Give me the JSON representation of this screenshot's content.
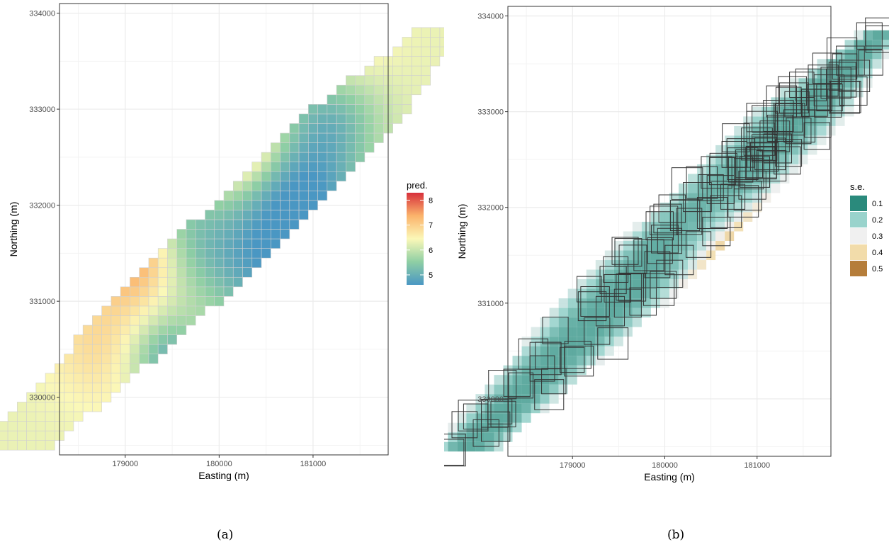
{
  "colors": {
    "pred_scale": [
      "#4a97c3",
      "#8fcfa4",
      "#fbf8b8",
      "#fbb36b",
      "#d7303b"
    ],
    "se_scale": [
      "#2a8a7c",
      "#99d3cc",
      "#f0f0f0",
      "#f2dcaa",
      "#b57d3a"
    ],
    "grid": "#ebebeb",
    "tile_border": "#d0d0d0",
    "panel_border": "#333333"
  },
  "chart_data": [
    {
      "type": "heatmap",
      "panel_caption": "(a)",
      "xlabel": "Easting (m)",
      "ylabel": "Northing (m)",
      "xlim": [
        178300,
        181800
      ],
      "ylim": [
        329400,
        334100
      ],
      "x_ticks": [
        179000,
        180000,
        181000
      ],
      "y_ticks": [
        330000,
        331000,
        332000,
        333000,
        334000
      ],
      "x_tick_labels": [
        "179000",
        "180000",
        "181000"
      ],
      "y_tick_labels": [
        "330000",
        "331000",
        "332000",
        "333000",
        "334000"
      ],
      "grid": true,
      "cell_size_m": 100,
      "legend": {
        "title": "pred.",
        "position": "right",
        "type": "colorbar",
        "range": [
          4.6,
          8.3
        ],
        "labels": [
          "5",
          "6",
          "7",
          "8"
        ],
        "values": [
          5,
          6,
          7,
          8
        ]
      },
      "field": {
        "centerline": {
          "x0": 178500,
          "y0": 330100,
          "slope": 1.03
        },
        "half_width_m": [
          {
            "y": 329500,
            "w": 360
          },
          {
            "y": 331000,
            "w": 580
          },
          {
            "y": 333000,
            "w": 520
          },
          {
            "y": 333800,
            "w": 220
          }
        ],
        "y_range": [
          329500,
          333850
        ],
        "base_value": 6.3,
        "features": [
          {
            "x": 180900,
            "y": 332100,
            "amp": -1.6,
            "sigma": 480
          },
          {
            "x": 180500,
            "y": 331300,
            "amp": -1.3,
            "sigma": 480
          },
          {
            "x": 179600,
            "y": 331700,
            "amp": -0.9,
            "sigma": 420
          },
          {
            "x": 179450,
            "y": 330400,
            "amp": -1.4,
            "sigma": 300
          },
          {
            "x": 181200,
            "y": 332950,
            "amp": -1.0,
            "sigma": 380
          },
          {
            "x": 180100,
            "y": 332700,
            "amp": 2.0,
            "sigma": 330
          },
          {
            "x": 179100,
            "y": 331500,
            "amp": 1.5,
            "sigma": 330
          },
          {
            "x": 178800,
            "y": 330600,
            "amp": 0.6,
            "sigma": 450
          },
          {
            "x": 180300,
            "y": 330200,
            "amp": 0.6,
            "sigma": 300
          },
          {
            "x": 181300,
            "y": 333650,
            "amp": 0.5,
            "sigma": 350
          }
        ]
      }
    },
    {
      "type": "heatmap",
      "panel_caption": "(b)",
      "xlabel": "Easting (m)",
      "ylabel": "Northing (m)",
      "xlim": [
        178300,
        181800
      ],
      "ylim": [
        329400,
        334100
      ],
      "x_ticks": [
        179000,
        180000,
        181000
      ],
      "y_ticks": [
        330000,
        331000,
        332000,
        333000,
        334000
      ],
      "x_tick_labels": [
        "179000",
        "180000",
        "181000"
      ],
      "y_tick_labels": [
        "330000",
        "331000",
        "332000",
        "333000",
        "334000"
      ],
      "grid": true,
      "cell_size_m": 100,
      "legend": {
        "title": "s.e.",
        "position": "right",
        "type": "binned",
        "labels": [
          "0.1",
          "0.2",
          "0.3",
          "0.4",
          "0.5"
        ],
        "values": [
          0.1,
          0.2,
          0.3,
          0.4,
          0.5
        ]
      },
      "field": {
        "centerline": {
          "x0": 178500,
          "y0": 330100,
          "slope": 1.03
        },
        "half_width_m": [
          {
            "y": 329500,
            "w": 360
          },
          {
            "y": 331000,
            "w": 580
          },
          {
            "y": 333000,
            "w": 520
          },
          {
            "y": 333800,
            "w": 220
          }
        ],
        "y_range": [
          329500,
          333850
        ],
        "base_value": 0.12,
        "edge_value": 0.3,
        "high_zone": {
          "x": 181000,
          "y": 331300,
          "amp": 0.35,
          "sigma": 380
        }
      },
      "sample_squares": {
        "count": 130,
        "side_m": [
          260,
          340
        ],
        "line_color": "#333333",
        "seed": 7
      }
    }
  ]
}
